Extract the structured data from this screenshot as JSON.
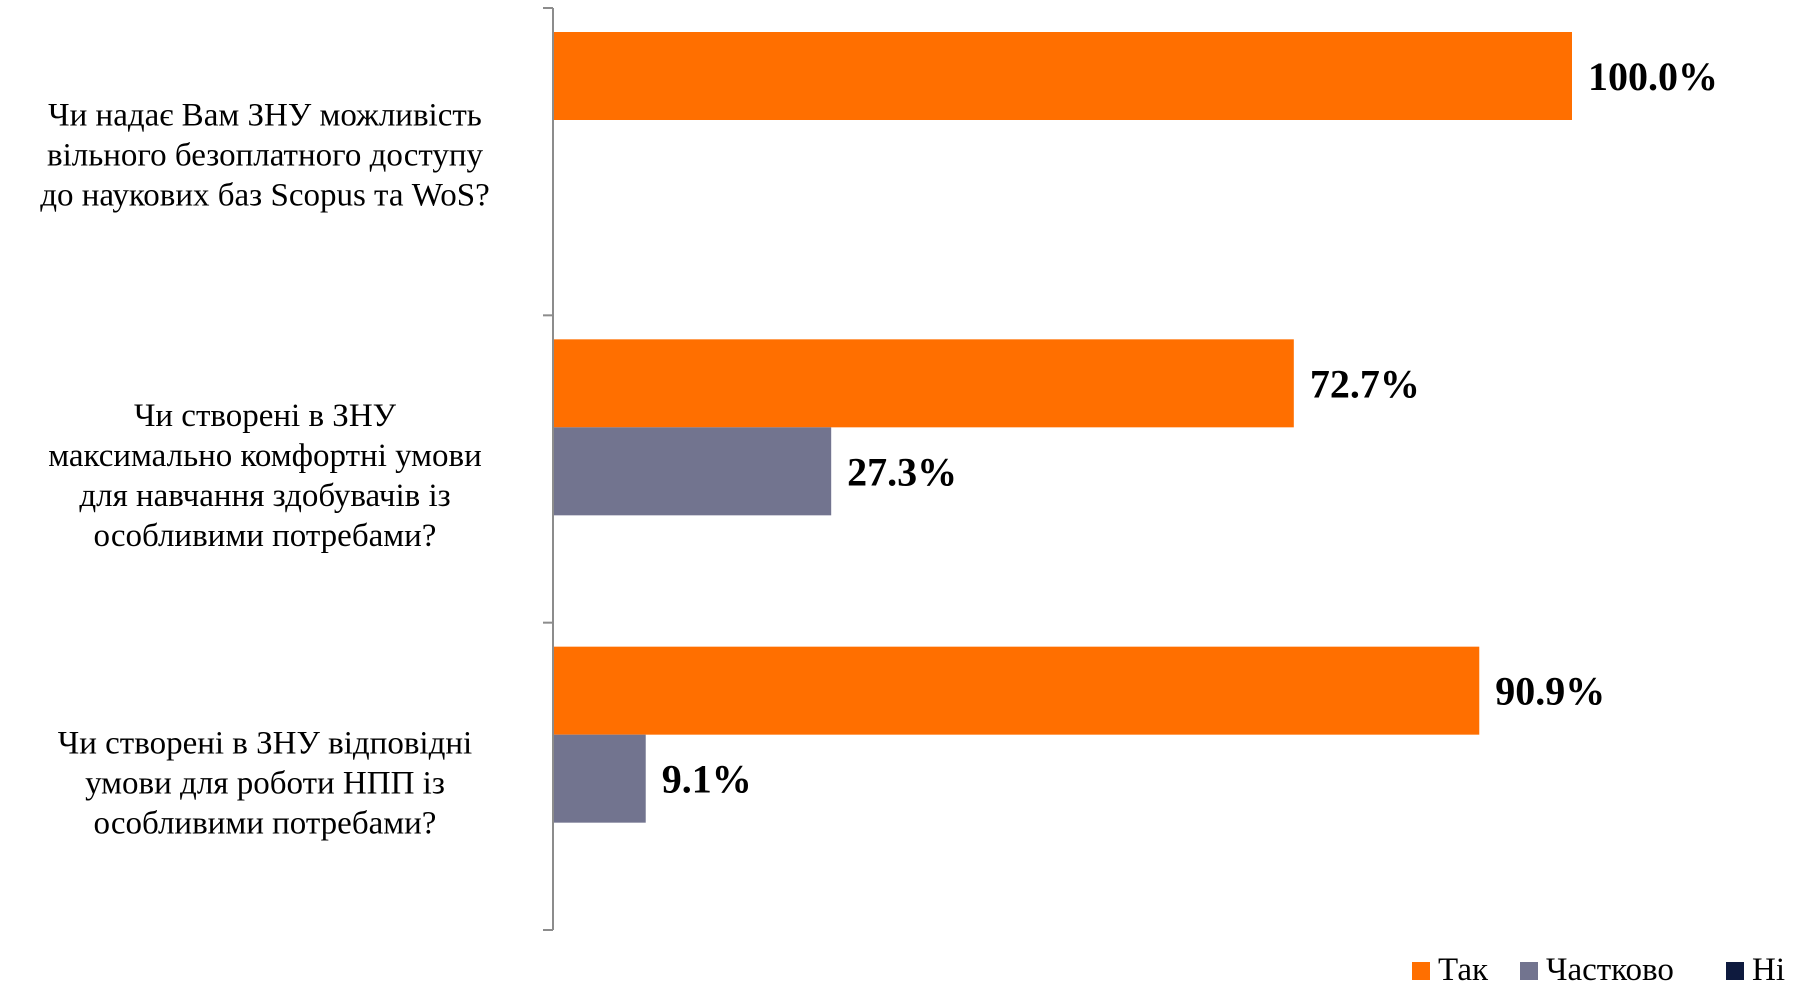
{
  "chart_data": {
    "type": "bar",
    "orientation": "horizontal",
    "categories": [
      "Чи надає Вам ЗНУ можливість вільного безоплатного доступу до наукових баз Scopus та WoS?",
      "Чи створені в ЗНУ максимально комфортні умови для навчання здобувачів із особливими потребами?",
      "Чи створені в ЗНУ відповідні умови для роботи НПП із особливими потребами?"
    ],
    "category_lines": [
      [
        "Чи надає Вам ЗНУ можливість",
        "вільного безоплатного доступу",
        "до наукових баз Scopus та WoS?"
      ],
      [
        "Чи створені в ЗНУ",
        "максимально комфортні умови",
        "для навчання здобувачів із",
        "особливими потребами?"
      ],
      [
        "Чи створені в ЗНУ відповідні",
        "умови для роботи НПП із",
        "особливими потребами?"
      ]
    ],
    "series": [
      {
        "name": "Так",
        "color": "#ff6f00",
        "values": [
          100.0,
          72.7,
          90.9
        ],
        "labels": [
          "100.0%",
          "72.7%",
          "90.9%"
        ]
      },
      {
        "name": "Частково",
        "color": "#72748f",
        "values": [
          0,
          27.3,
          9.1
        ],
        "labels": [
          "",
          "27.3%",
          "9.1%"
        ]
      },
      {
        "name": "Ні",
        "color": "#0e1a3e",
        "values": [
          0,
          0,
          0
        ],
        "labels": [
          "",
          "",
          ""
        ]
      }
    ],
    "xlim": [
      0,
      100
    ],
    "grid": false,
    "legend_position": "bottom-right"
  }
}
